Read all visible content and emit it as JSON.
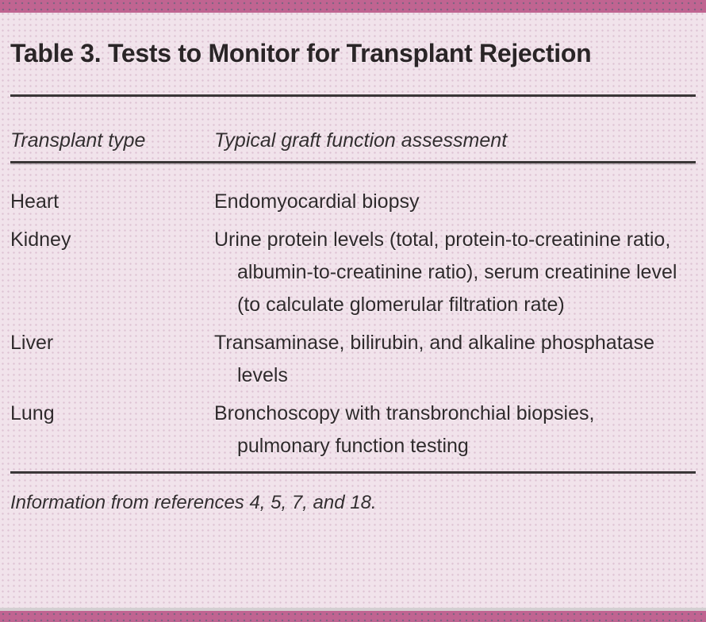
{
  "table": {
    "title": "Table 3. Tests to Monitor for Transplant Rejection",
    "columns": [
      {
        "label": "Transplant type"
      },
      {
        "label": "Typical graft function assessment"
      }
    ],
    "rows": [
      {
        "type": "Heart",
        "assessment": "Endomyocardial biopsy"
      },
      {
        "type": "Kidney",
        "assessment": "Urine protein levels (total, protein-to-creatinine ratio, albumin-to-creatinine ratio), serum creatinine level (to calculate glomerular filtration rate)"
      },
      {
        "type": "Liver",
        "assessment": "Transaminase, bilirubin, and alkaline phosphatase levels"
      },
      {
        "type": "Lung",
        "assessment": "Bronchoscopy with transbronchial biopsies, pulmonary function testing"
      }
    ],
    "footnote": "Information from references 4, 5, 7, and 18."
  },
  "colors": {
    "accent_bar": "#c06491",
    "background": "#f1e3eb",
    "text": "#2f2a2c",
    "rule": "#3a3637"
  }
}
